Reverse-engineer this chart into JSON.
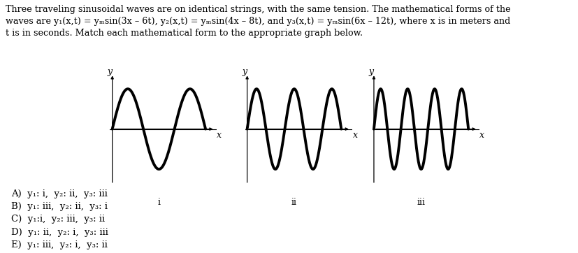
{
  "bg_color": "#ffffff",
  "wave_color": "#000000",
  "linewidth": 2.8,
  "graph_labels": [
    "i",
    "ii",
    "iii"
  ],
  "wave_cycles": [
    1.5,
    2.5,
    3.5
  ],
  "text_line1": "Three traveling sinusoidal waves are on identical strings, with the same tension. The mathematical forms of the",
  "text_line2": "waves are y₁(x,t) = yₘsin(3x – 6t), y₂(x,t) = yₘsin(4x – 8t), and y₃(x,t) = yₘsin(6x – 12t), where x is in meters and",
  "text_line3": "t is in seconds. Match each mathematical form to the appropriate graph below.",
  "ans_A": "A)  y₁: i,  y₂: ii,  y₃: iii",
  "ans_B": "B)  y₁: iii,  y₂: ii,  y₃: i",
  "ans_C": "C)  y₁:i,  y₂: iii,  y₃: ii",
  "ans_D": "D)  y₁: ii,  y₂: i,  y₃: iii",
  "ans_E": "E)  y₁: iii,  y₂: i,  y₃: ii"
}
